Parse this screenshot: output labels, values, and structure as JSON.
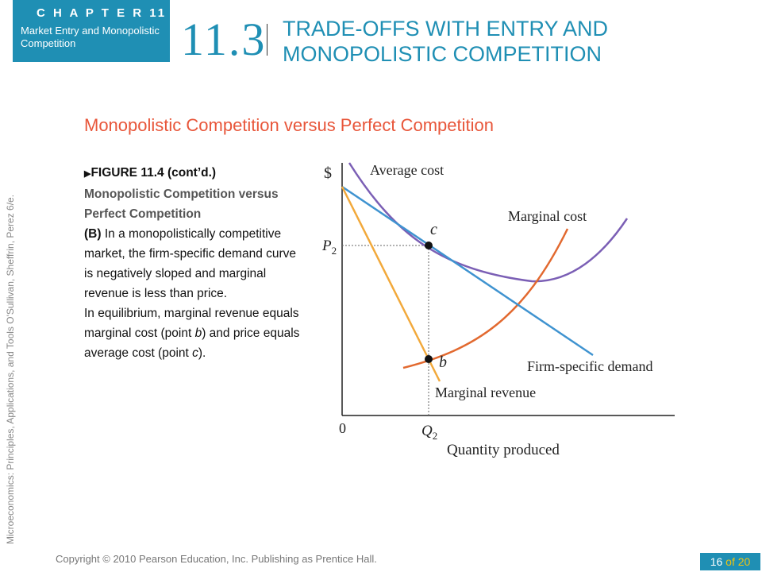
{
  "header": {
    "chapter_label": "C H A P T E R 11",
    "chapter_subtitle": "Market Entry and Monopolistic Competition",
    "section_number": "11.3",
    "section_title": "TRADE-OFFS WITH ENTRY AND MONOPOLISTIC COMPETITION"
  },
  "side_credit": "Microeconomics: Principles, Applications, and Tools     O'Sullivan, Sheffrin, Perez     6/e.",
  "slide_subtitle": "Monopolistic Competition versus Perfect Competition",
  "caption": {
    "figure_label": "FIGURE 11.4 (cont’d.)",
    "figure_title": "Monopolistic Competition versus Perfect Competition",
    "part_label": "(B)",
    "part_text": "In a monopolistically competitive market, the firm-specific demand curve is negatively sloped and marginal revenue is less than price.",
    "eq_text_1": "In equilibrium, marginal revenue equals marginal cost (point ",
    "eq_point_b": "b",
    "eq_text_2": ") and price equals average cost (point ",
    "eq_point_c": "c",
    "eq_text_3": ")."
  },
  "diagram": {
    "y_axis_label": "$",
    "x_axis_label": "Quantity produced",
    "origin_label": "0",
    "price_label": "P",
    "price_subscript": "2",
    "quantity_label": "Q",
    "quantity_subscript": "2",
    "point_c_label": "c",
    "point_b_label": "b",
    "curve_labels": {
      "average_cost": "Average cost",
      "marginal_cost": "Marginal cost",
      "demand": "Firm-specific demand",
      "marginal_revenue": "Marginal revenue"
    },
    "colors": {
      "average_cost": "#7b5fb5",
      "marginal_cost": "#e2692f",
      "demand": "#3f93d0",
      "marginal_revenue": "#f2a93b"
    }
  },
  "footer": {
    "copyright": "Copyright © 2010  Pearson Education, Inc. Publishing as Prentice Hall.",
    "page_current": "16",
    "page_of": "of 20"
  }
}
